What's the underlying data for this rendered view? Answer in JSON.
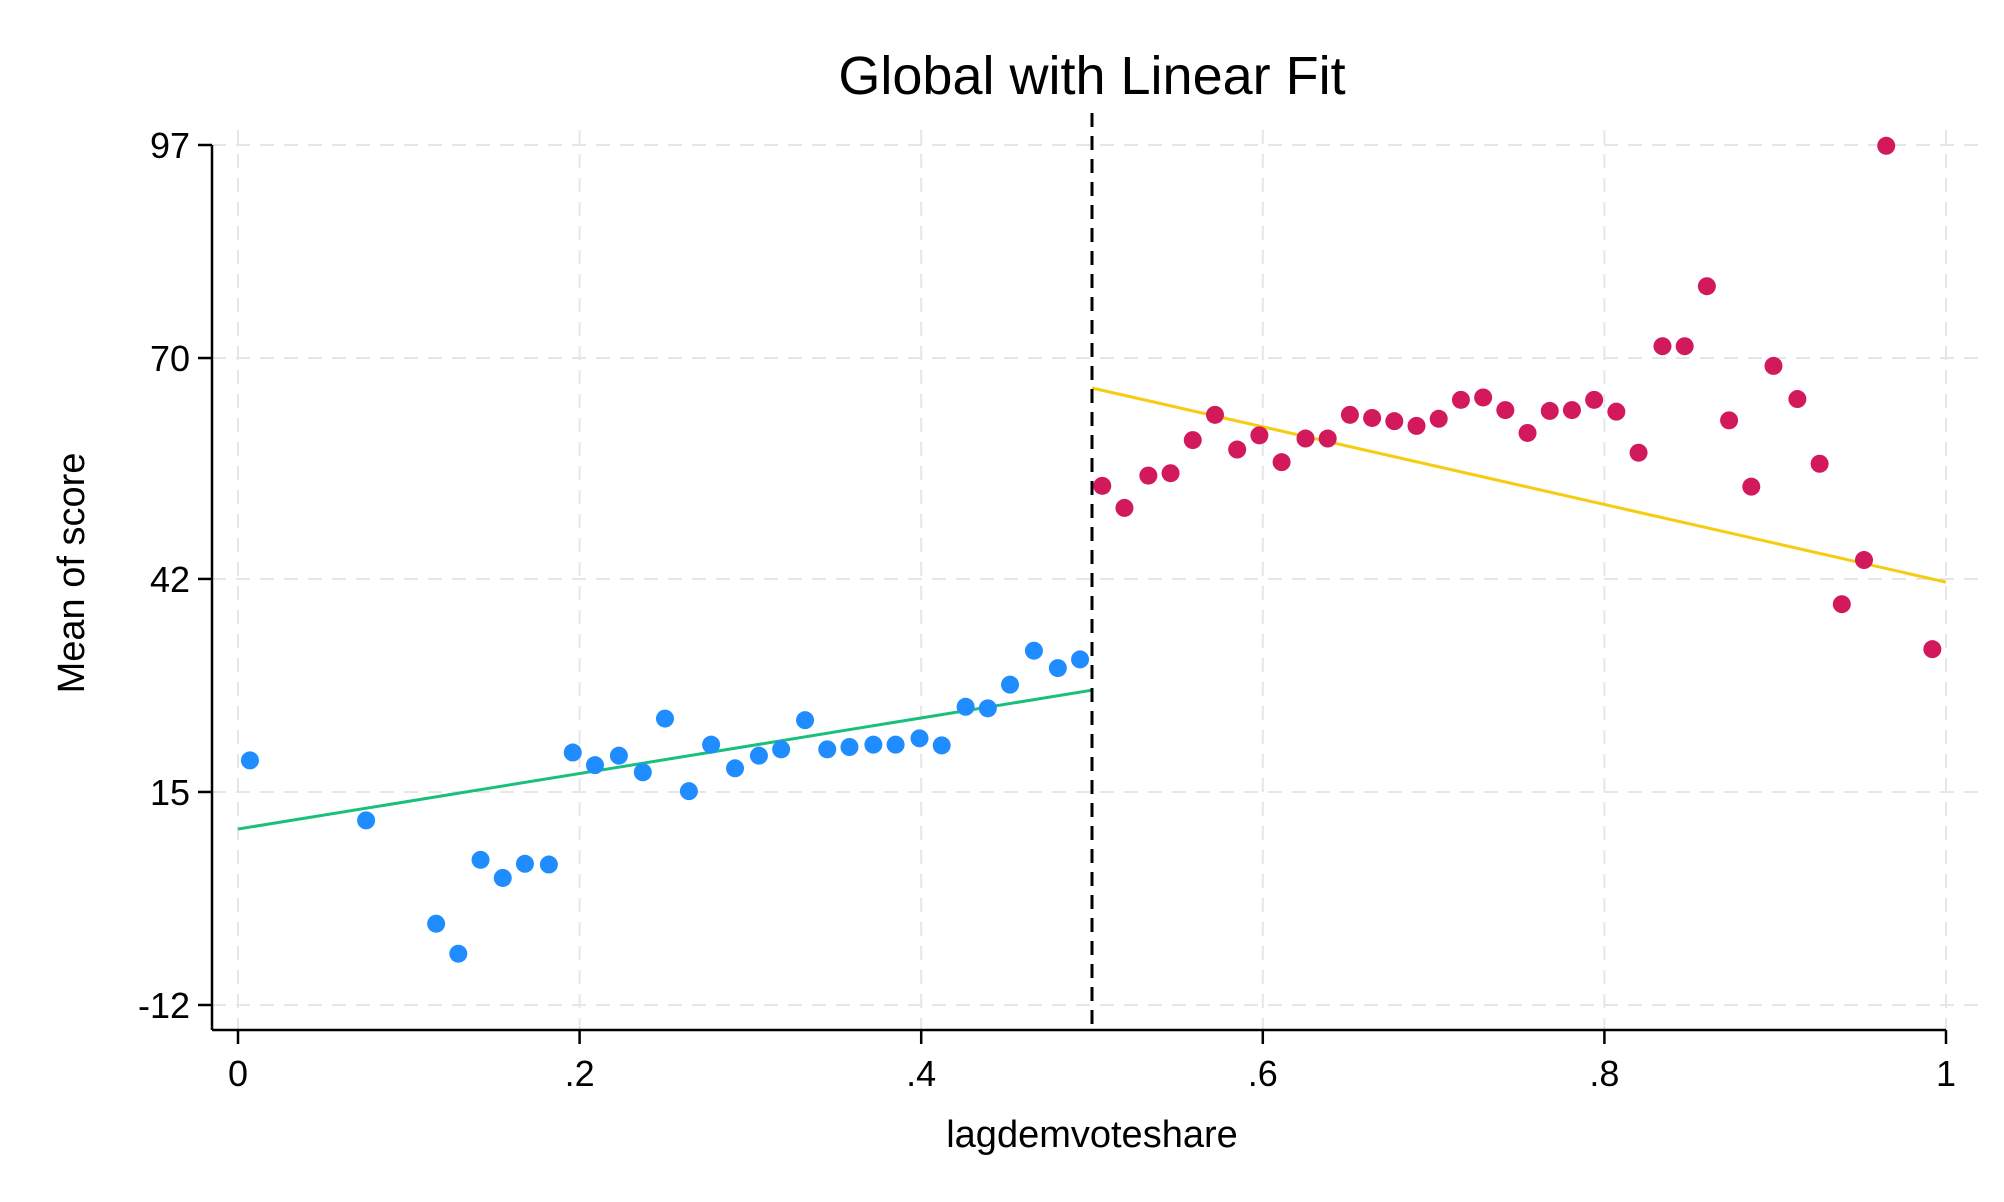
{
  "chart_data": {
    "type": "scatter",
    "title": "Global with Linear Fit",
    "xlabel": "lagdemvoteshare",
    "ylabel": "Mean of score",
    "xlim": [
      0,
      1
    ],
    "ylim": [
      -12,
      97
    ],
    "x_ticks": [
      {
        "value": 0,
        "label": "0"
      },
      {
        "value": 0.2,
        "label": ".2"
      },
      {
        "value": 0.4,
        "label": ".4"
      },
      {
        "value": 0.6,
        "label": ".6"
      },
      {
        "value": 0.8,
        "label": ".8"
      },
      {
        "value": 1,
        "label": "1"
      }
    ],
    "y_ticks": [
      {
        "value": -12,
        "label": "-12"
      },
      {
        "value": 15,
        "label": "15"
      },
      {
        "value": 42,
        "label": "42"
      },
      {
        "value": 70,
        "label": "70"
      },
      {
        "value": 97,
        "label": "97"
      }
    ],
    "grid": true,
    "cutoff": 0.5,
    "colors": {
      "left_points": "#1f8cff",
      "right_points": "#d1195c",
      "left_fit": "#19bf7c",
      "right_fit": "#f5cc0f",
      "cutoff_line": "#000000",
      "grid": "#e6e6e6"
    },
    "series": [
      {
        "points": [
          [
            0.007,
            19.0
          ],
          [
            0.075,
            11.4
          ],
          [
            0.116,
            -1.7
          ],
          [
            0.129,
            -5.5
          ],
          [
            0.142,
            6.4
          ],
          [
            0.155,
            4.1
          ],
          [
            0.168,
            5.9
          ],
          [
            0.182,
            5.8
          ],
          [
            0.196,
            20.0
          ],
          [
            0.209,
            18.4
          ],
          [
            0.223,
            19.6
          ],
          [
            0.237,
            17.5
          ],
          [
            0.25,
            24.3
          ],
          [
            0.264,
            15.1
          ],
          [
            0.277,
            21.0
          ],
          [
            0.291,
            18.0
          ],
          [
            0.305,
            19.6
          ],
          [
            0.318,
            20.4
          ],
          [
            0.332,
            24.1
          ],
          [
            0.345,
            20.4
          ],
          [
            0.358,
            20.7
          ],
          [
            0.372,
            21.0
          ],
          [
            0.385,
            21.0
          ],
          [
            0.399,
            21.8
          ],
          [
            0.412,
            20.9
          ],
          [
            0.426,
            25.8
          ],
          [
            0.439,
            25.6
          ],
          [
            0.452,
            28.6
          ],
          [
            0.466,
            32.9
          ],
          [
            0.48,
            30.7
          ],
          [
            0.493,
            31.8
          ]
        ]
      },
      {
        "points": [
          [
            0.506,
            53.8
          ],
          [
            0.519,
            51.0
          ],
          [
            0.533,
            55.1
          ],
          [
            0.546,
            55.4
          ],
          [
            0.559,
            59.6
          ],
          [
            0.572,
            62.8
          ],
          [
            0.585,
            58.4
          ],
          [
            0.598,
            60.2
          ],
          [
            0.611,
            56.8
          ],
          [
            0.625,
            59.8
          ],
          [
            0.638,
            59.8
          ],
          [
            0.651,
            62.8
          ],
          [
            0.664,
            62.4
          ],
          [
            0.677,
            62.0
          ],
          [
            0.69,
            61.4
          ],
          [
            0.703,
            62.3
          ],
          [
            0.716,
            64.7
          ],
          [
            0.729,
            65.0
          ],
          [
            0.742,
            63.4
          ],
          [
            0.755,
            60.5
          ],
          [
            0.768,
            63.3
          ],
          [
            0.781,
            63.4
          ],
          [
            0.794,
            64.7
          ],
          [
            0.807,
            63.2
          ],
          [
            0.82,
            58.0
          ],
          [
            0.834,
            71.5
          ],
          [
            0.847,
            71.5
          ],
          [
            0.86,
            79.1
          ],
          [
            0.873,
            62.1
          ],
          [
            0.886,
            53.7
          ],
          [
            0.899,
            69.0
          ],
          [
            0.913,
            64.8
          ],
          [
            0.926,
            56.6
          ],
          [
            0.939,
            38.8
          ],
          [
            0.952,
            44.4
          ],
          [
            0.965,
            96.9
          ],
          [
            0.992,
            33.1
          ]
        ]
      }
    ],
    "fits": [
      {
        "x": [
          0,
          0.5
        ],
        "y": [
          10.3,
          27.9
        ]
      },
      {
        "x": [
          0.5,
          1
        ],
        "y": [
          66.2,
          41.6
        ]
      }
    ]
  }
}
